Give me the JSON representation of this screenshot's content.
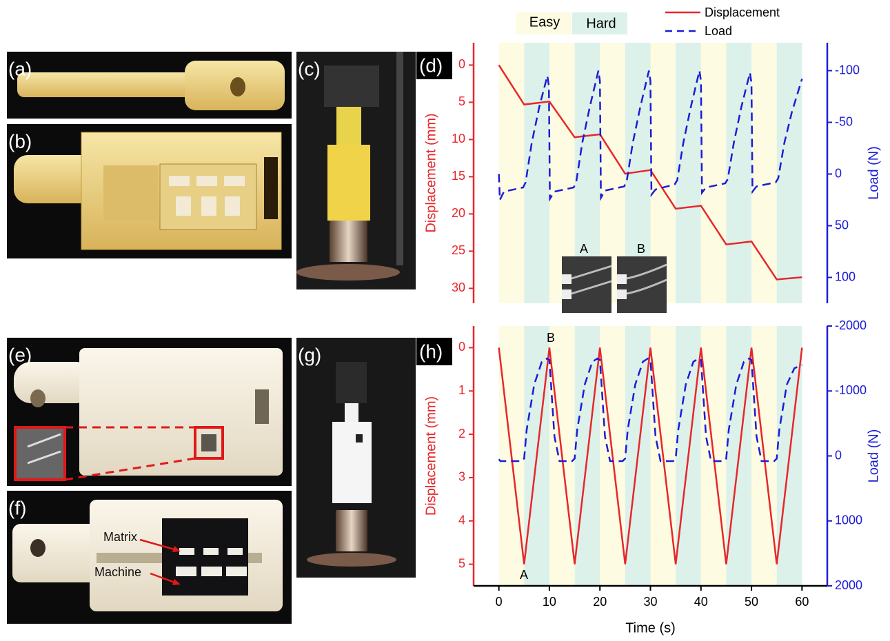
{
  "photos": {
    "a": "(a)",
    "b": "(b)",
    "c": "(c)",
    "e": "(e)",
    "f": "(f)",
    "g": "(g)",
    "matrix": "Matrix",
    "machine": "Machine"
  },
  "chart_data": [
    {
      "type": "line",
      "panel": "(d)",
      "xlim": [
        -5,
        65
      ],
      "ylim": [
        32,
        -3
      ],
      "y2lim": [
        125,
        -127
      ],
      "yticks": [
        0,
        5,
        10,
        15,
        20,
        25,
        30
      ],
      "y2ticks": [
        -100,
        -50,
        0,
        50,
        100
      ],
      "ylabel": "Displacement (mm)",
      "y2label": "Load (N)",
      "annotations": [
        "A",
        "B"
      ],
      "bands": {
        "names": [
          "Easy",
          "Hard"
        ],
        "colors": [
          "#fdfbe1",
          "#dcf1ea"
        ],
        "edges": [
          0,
          5,
          10,
          15,
          20,
          25,
          30,
          35,
          40,
          45,
          50,
          55,
          60
        ]
      },
      "series": [
        {
          "name": "Displacement",
          "color": "#e8262a",
          "line_style": "solid",
          "x": [
            0,
            5,
            10,
            15,
            20,
            25,
            30,
            35,
            40,
            45,
            50,
            55,
            60
          ],
          "values": [
            0,
            5.3,
            4.9,
            9.7,
            9.3,
            14.6,
            14.1,
            19.3,
            18.9,
            24.1,
            23.7,
            28.8,
            28.5
          ]
        },
        {
          "name": "Load",
          "color": "#1c1cd6",
          "line_style": "dashed",
          "axis": "y2",
          "x": [
            0,
            0.2,
            1,
            4.8,
            5.3,
            6.5,
            8,
            9.6,
            9.9,
            10.1,
            11,
            14.8,
            15.3,
            16.5,
            18,
            19.7,
            20,
            20.2,
            21,
            24.8,
            25.3,
            26.5,
            28,
            29.7,
            30,
            30.2,
            31,
            34.8,
            35.3,
            36.5,
            38,
            39.7,
            40,
            40.2,
            41,
            44.8,
            45.3,
            46.5,
            48,
            49.7,
            50,
            50.2,
            51,
            54.8,
            55.3,
            56.5,
            58,
            60
          ],
          "values": [
            0,
            25,
            17,
            13,
            8,
            -30,
            -65,
            -95,
            -85,
            24,
            17,
            13,
            8,
            -30,
            -65,
            -100,
            -90,
            23,
            16,
            12,
            7,
            -30,
            -65,
            -100,
            -90,
            20,
            15,
            10,
            6,
            -30,
            -65,
            -100,
            -90,
            18,
            13,
            9,
            5,
            -30,
            -65,
            -98,
            -88,
            17,
            12,
            8,
            4,
            -30,
            -60,
            -92
          ]
        }
      ]
    },
    {
      "type": "line",
      "panel": "(h)",
      "xlim": [
        -5,
        65
      ],
      "ylim": [
        5.5,
        -0.5
      ],
      "y2lim": [
        2000,
        -2000
      ],
      "xticks": [
        0,
        10,
        20,
        30,
        40,
        50,
        60
      ],
      "yticks": [
        0,
        1,
        2,
        3,
        4,
        5
      ],
      "y2ticks": [
        -2000,
        -1000,
        0,
        1000,
        2000
      ],
      "xlabel": "Time (s)",
      "ylabel": "Displacement (mm)",
      "y2label": "Load (N)",
      "annotations": [
        "A",
        "B"
      ],
      "bands": {
        "names": [
          "Easy",
          "Hard"
        ],
        "colors": [
          "#fdfbe1",
          "#dcf1ea"
        ],
        "edges": [
          0,
          5,
          10,
          15,
          20,
          25,
          30,
          35,
          40,
          45,
          50,
          55,
          60
        ]
      },
      "series": [
        {
          "name": "Displacement",
          "color": "#e8262a",
          "line_style": "solid",
          "x": [
            0,
            5,
            10,
            15,
            20,
            25,
            30,
            35,
            40,
            45,
            50,
            55,
            60
          ],
          "values": [
            0,
            5,
            0,
            5,
            0,
            5,
            0,
            5,
            0,
            5,
            0,
            5,
            0
          ]
        },
        {
          "name": "Load",
          "color": "#1c1cd6",
          "line_style": "dashed",
          "axis": "y2",
          "x": [
            0,
            0.3,
            4.5,
            5,
            5.5,
            7,
            8.5,
            9.5,
            10,
            11,
            12,
            14.5,
            15,
            15.5,
            17,
            18.5,
            19.5,
            20,
            21,
            22,
            24.5,
            25,
            25.5,
            27,
            28.5,
            29.5,
            30,
            31,
            32,
            34.5,
            35,
            35.5,
            37,
            38.5,
            39.5,
            40,
            41,
            42,
            44.5,
            45,
            45.5,
            47,
            48.5,
            49.5,
            50,
            51,
            52,
            54.5,
            55,
            55.5,
            57,
            58.5,
            60
          ],
          "values": [
            50,
            80,
            80,
            40,
            -400,
            -1100,
            -1450,
            -1500,
            -1480,
            -300,
            80,
            80,
            40,
            -400,
            -1100,
            -1450,
            -1500,
            -1480,
            -300,
            80,
            80,
            40,
            -400,
            -1100,
            -1450,
            -1500,
            -1480,
            -300,
            80,
            80,
            40,
            -400,
            -1100,
            -1450,
            -1500,
            -1480,
            -300,
            80,
            80,
            40,
            -400,
            -1100,
            -1450,
            -1500,
            -1480,
            -300,
            80,
            80,
            40,
            -400,
            -1100,
            -1350,
            -1400
          ]
        }
      ]
    }
  ]
}
